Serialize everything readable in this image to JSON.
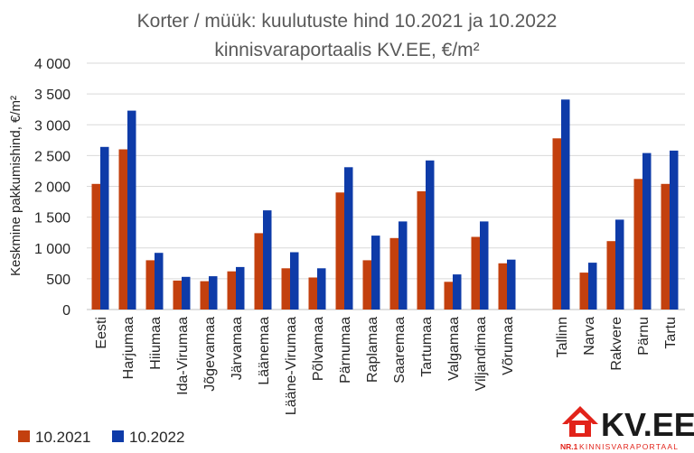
{
  "chart_data": {
    "type": "bar",
    "title": "Korter / müük: kuulutuste hind 10.2021 ja 10.2022",
    "subtitle": "kinnisvaraportaalis KV.EE, €/m²",
    "ylabel": "Keskmine pakkumishind, €/m²",
    "xlabel": "",
    "ylim": [
      0,
      4000
    ],
    "yticks": [
      0,
      500,
      1000,
      1500,
      2000,
      2500,
      3000,
      3500,
      4000
    ],
    "ytick_labels": [
      "0",
      "500",
      "1 000",
      "1 500",
      "2 000",
      "2 500",
      "3 000",
      "3 500",
      "4 000"
    ],
    "categories": [
      "Eesti",
      "Harjumaa",
      "Hiiumaa",
      "Ida-Virumaa",
      "Jõgevamaa",
      "Järvamaa",
      "Läänemaa",
      "Lääne-Virumaa",
      "Põlvamaa",
      "Pärnumaa",
      "Raplamaa",
      "Saaremaa",
      "Tartumaa",
      "Valgamaa",
      "Viljandimaa",
      "Võrumaa",
      "Tallinn",
      "Narva",
      "Rakvere",
      "Pärnu",
      "Tartu"
    ],
    "series": [
      {
        "name": "10.2021",
        "color": "#C3400E",
        "values": [
          2040,
          2600,
          800,
          470,
          460,
          620,
          1240,
          670,
          520,
          1900,
          800,
          1160,
          1920,
          450,
          1180,
          750,
          2780,
          600,
          1110,
          2120,
          2040
        ]
      },
      {
        "name": "10.2022",
        "color": "#0E3BA8",
        "values": [
          2640,
          3230,
          920,
          530,
          540,
          690,
          1610,
          930,
          670,
          2310,
          1200,
          1430,
          2420,
          570,
          1430,
          810,
          3410,
          760,
          1460,
          2540,
          2580
        ]
      }
    ],
    "grid": true,
    "legend": "bottom-left"
  },
  "logo": {
    "mark": "KV.EE",
    "tagline_prefix": "NR.1",
    "tagline": "KINNISVARAPORTAAL",
    "accent": "#E2231A",
    "text_color": "#1A1A1A"
  }
}
